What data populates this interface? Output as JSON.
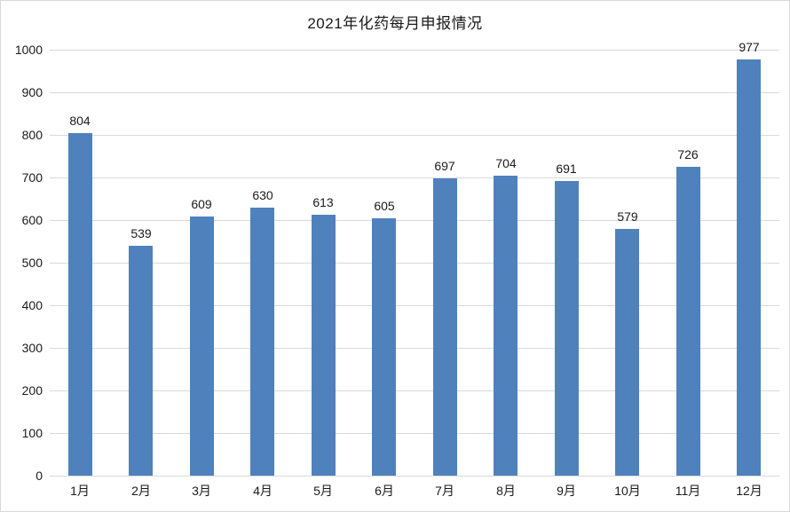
{
  "chart_data": {
    "type": "bar",
    "title": "2021年化药每月申报情况",
    "categories": [
      "1月",
      "2月",
      "3月",
      "4月",
      "5月",
      "6月",
      "7月",
      "8月",
      "9月",
      "10月",
      "11月",
      "12月"
    ],
    "values": [
      804,
      539,
      609,
      630,
      613,
      605,
      697,
      704,
      691,
      579,
      726,
      977
    ],
    "data_labels": [
      804,
      539,
      609,
      630,
      613,
      605,
      697,
      704,
      691,
      579,
      726,
      977
    ],
    "xlabel": "",
    "ylabel": "",
    "ylim": [
      0,
      1000
    ],
    "yticks": [
      0,
      100,
      200,
      300,
      400,
      500,
      600,
      700,
      800,
      900,
      1000
    ],
    "grid": true,
    "legend": "none",
    "bar_color": "#4F81BD",
    "gridline_color": "#D9D9D9",
    "border_color": "#D9D9D9",
    "text_color": "#1A1A1A"
  }
}
